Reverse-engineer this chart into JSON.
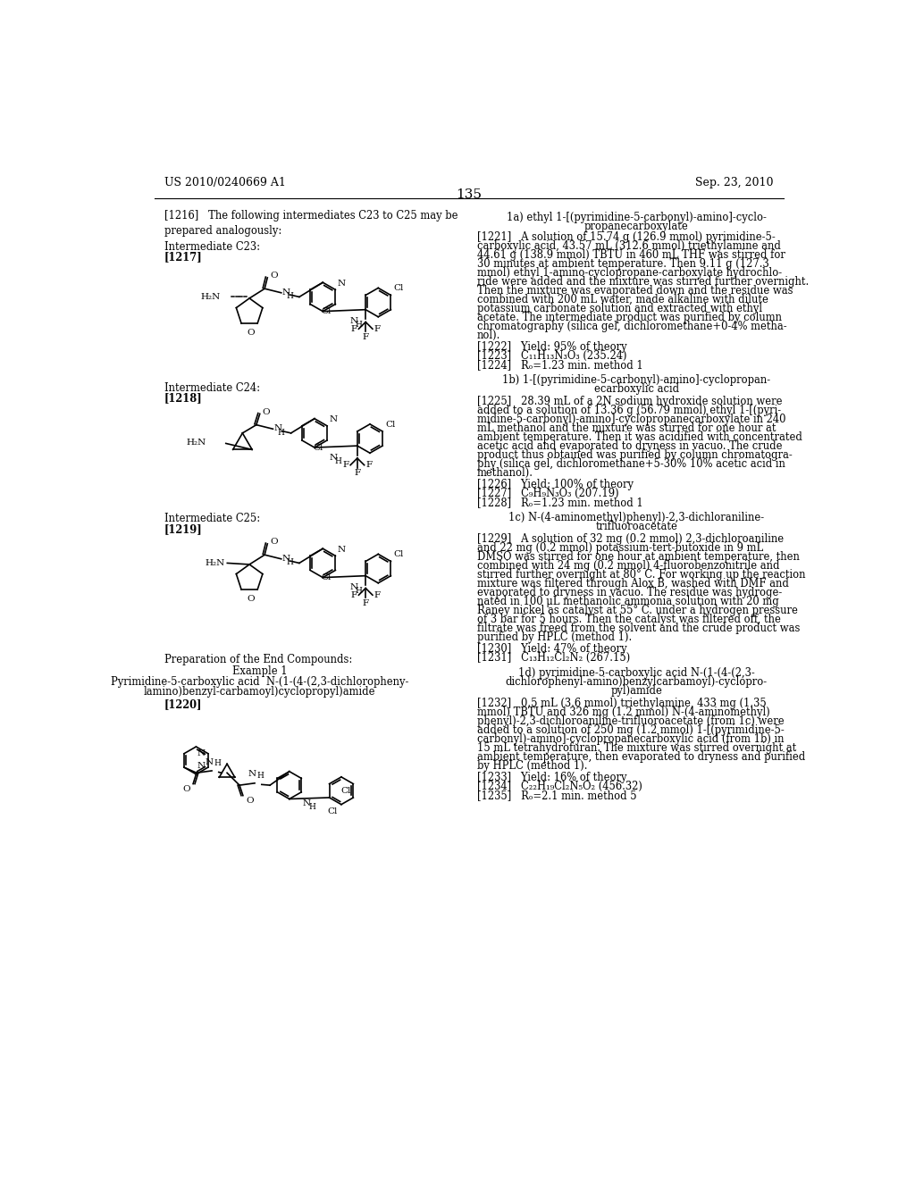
{
  "page_header_left": "US 2010/0240669 A1",
  "page_header_right": "Sep. 23, 2010",
  "page_number": "135",
  "background_color": "#ffffff",
  "text_color": "#000000",
  "left_column": {
    "para_1216": "[1216]   The following intermediates C23 to C25 may be\nprepared analogously:",
    "int_c23": "Intermediate C23:",
    "ref_1217": "[1217]",
    "int_c24": "Intermediate C24:",
    "ref_1218": "[1218]",
    "int_c25": "Intermediate C25:",
    "ref_1219": "[1219]",
    "prep": "Preparation of the End Compounds:",
    "example1": "Example 1",
    "example1_title_1": "Pyrimidine-5-carboxylic acid  N-(1-(4-(2,3-dichloropheny-",
    "example1_title_2": "lamino)benzyl-carbamoyl)cyclopropyl)amide",
    "ref_1220": "[1220]"
  },
  "right_column": {
    "sec_1a_1": "1a) ethyl 1-[(pyrimidine-5-carbonyl)-amino]-cyclo-",
    "sec_1a_2": "propanecarboxylate",
    "para_1221_lines": [
      "[1221]   A solution of 15.74 g (126.9 mmol) pyrimidine-5-",
      "carboxylic acid, 43.57 mL (312.6 mmol) triethylamine and",
      "44.61 g (138.9 mmol) TBTU in 460 mL THF was stirred for",
      "30 minutes at ambient temperature. Then 9.11 g (127.3",
      "mmol) ethyl 1-amino-cyclopropane-carboxylate hydrochlo-",
      "ride were added and the mixture was stirred further overnight.",
      "Then the mixture was evaporated down and the residue was",
      "combined with 200 mL water, made alkaline with dilute",
      "potassium carbonate solution and extracted with ethyl",
      "acetate. The intermediate product was purified by column",
      "chromatography (silica gel, dichloromethane+0-4% metha-",
      "nol)."
    ],
    "ref_1222": "[1222]   Yield: 95% of theory",
    "ref_1223": "[1223]   C₁₁H₁₃N₃O₃ (235.24)",
    "ref_1224": "[1224]   Rₒ=1.23 min. method 1",
    "sec_1b_1": "1b) 1-[(pyrimidine-5-carbonyl)-amino]-cyclopropan-",
    "sec_1b_2": "ecarboxylic acid",
    "para_1225_lines": [
      "[1225]   28.39 mL of a 2N sodium hydroxide solution were",
      "added to a solution of 13.36 g (56.79 mmol) ethyl 1-[(pyri-",
      "midine-5-carbonyl)-amino]-cyclopropanecarboxylate in 240",
      "mL methanol and the mixture was stirred for one hour at",
      "ambient temperature. Then it was acidified with concentrated",
      "acetic acid and evaporated to dryness in vacuo. The crude",
      "product thus obtained was purified by column chromatogra-",
      "phy (silica gel, dichloromethane+5-30% 10% acetic acid in",
      "methanol)."
    ],
    "ref_1226": "[1226]   Yield: 100% of theory",
    "ref_1227": "[1227]   C₉H₉N₃O₃ (207.19)",
    "ref_1228": "[1228]   Rₒ=1.23 min. method 1",
    "sec_1c_1": "1c) N-(4-aminomethyl)phenyl)-2,3-dichloraniline-",
    "sec_1c_2": "trifluoroacetate",
    "para_1229_lines": [
      "[1229]   A solution of 32 mg (0.2 mmol) 2,3-dichloroaniline",
      "and 22 mg (0.2 mmol) potassium-tert-butoxide in 9 mL",
      "DMSO was stirred for one hour at ambient temperature, then",
      "combined with 24 mg (0.2 mmol) 4-fluorobenzonitrile and",
      "stirred further overnight at 80° C. For working up the reaction",
      "mixture was filtered through Alox B, washed with DMF and",
      "evaporated to dryness in vacuo. The residue was hydroge-",
      "nated in 100 μL methanolic ammonia solution with 20 mg",
      "Raney nickel as catalyst at 55° C. under a hydrogen pressure",
      "of 3 bar for 5 hours. Then the catalyst was filtered off, the",
      "filtrate was freed from the solvent and the crude product was",
      "purified by HPLC (method 1)."
    ],
    "ref_1230": "[1230]   Yield: 47% of theory",
    "ref_1231": "[1231]   C₁₃H₁₂Cl₂N₂ (267.15)",
    "sec_1d_1": "1d) pyrimidine-5-carboxylic acid N-(1-(4-(2,3-",
    "sec_1d_2": "dichlorophenyl­amino)benzylcarbamoyl)-cyclopro-",
    "sec_1d_3": "pyl)amide",
    "para_1232_lines": [
      "[1232]   0.5 mL (3.6 mmol) triethylamine, 433 mg (1.35",
      "mmol) TBTU and 326 mg (1.2 mmol) N-(4-aminomethyl)",
      "phenyl)-2,3-dichloroaniline-trifluoroacetate (from 1c) were",
      "added to a solution of 250 mg (1.2 mmol) 1-[(pyrimidine-5-",
      "carbonyl)-amino]-cyclopropanecarboxylic acid (from 1b) in",
      "15 mL tetrahydrofuran. The mixture was stirred overnight at",
      "ambient temperature, then evaporated to dryness and purified",
      "by HPLC (method 1)."
    ],
    "ref_1233": "[1233]   Yield: 16% of theory",
    "ref_1234": "[1234]   C₂₂H₁₉Cl₂N₅O₂ (456.32)",
    "ref_1235": "[1235]   Rₒ=2.1 min. method 5"
  }
}
